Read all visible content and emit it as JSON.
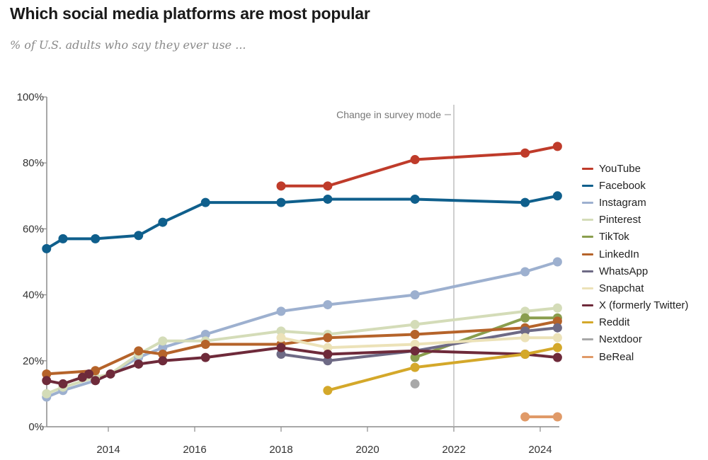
{
  "header": {
    "title": "Which social media platforms are most popular",
    "subtitle": "% of U.S. adults who say they ever use ..."
  },
  "chart_data": {
    "type": "line",
    "title": "Which social media platforms are most popular",
    "subtitle": "% of U.S. adults who say they ever use ...",
    "xlabel": "",
    "ylabel": "",
    "xlim": [
      2012.57,
      2024.6
    ],
    "ylim": [
      0,
      100
    ],
    "x_ticks": [
      2014,
      2016,
      2018,
      2020,
      2022,
      2024
    ],
    "x_tick_labels": [
      "2014",
      "2016",
      "2018",
      "2020",
      "2022",
      "2024"
    ],
    "y_ticks": [
      0,
      20,
      40,
      60,
      80,
      100
    ],
    "y_tick_labels": [
      "0%",
      "20%",
      "40%",
      "60%",
      "80%",
      "100%"
    ],
    "grid": false,
    "legend_position": "right",
    "annotation": {
      "text": "Change in survey mode",
      "x": 2022
    },
    "series": [
      {
        "name": "YouTube",
        "color": "#bf3b2a",
        "points": [
          [
            2018.0,
            73
          ],
          [
            2019.08,
            73
          ],
          [
            2021.1,
            81
          ],
          [
            2023.65,
            83
          ],
          [
            2024.4,
            85
          ]
        ]
      },
      {
        "name": "Facebook",
        "color": "#0f5f8c",
        "points": [
          [
            2012.57,
            54
          ],
          [
            2012.95,
            57
          ],
          [
            2013.7,
            57
          ],
          [
            2014.7,
            58
          ],
          [
            2015.26,
            62
          ],
          [
            2016.25,
            68
          ],
          [
            2018.0,
            68
          ],
          [
            2019.08,
            69
          ],
          [
            2021.1,
            69
          ],
          [
            2023.65,
            68
          ],
          [
            2024.4,
            70
          ]
        ]
      },
      {
        "name": "Instagram",
        "color": "#9db0cf",
        "points": [
          [
            2012.57,
            9
          ],
          [
            2012.95,
            11
          ],
          [
            2013.7,
            14
          ],
          [
            2014.05,
            16
          ],
          [
            2014.7,
            21
          ],
          [
            2015.26,
            24
          ],
          [
            2016.25,
            28
          ],
          [
            2018.0,
            35
          ],
          [
            2019.08,
            37
          ],
          [
            2021.1,
            40
          ],
          [
            2023.65,
            47
          ],
          [
            2024.4,
            50
          ]
        ]
      },
      {
        "name": "Pinterest",
        "color": "#d4dcb8",
        "points": [
          [
            2012.57,
            10
          ],
          [
            2012.95,
            12
          ],
          [
            2013.7,
            15
          ],
          [
            2014.05,
            16
          ],
          [
            2014.7,
            22
          ],
          [
            2015.26,
            26
          ],
          [
            2016.25,
            26
          ],
          [
            2018.0,
            29
          ],
          [
            2019.08,
            28
          ],
          [
            2021.1,
            31
          ],
          [
            2023.65,
            35
          ],
          [
            2024.4,
            36
          ]
        ]
      },
      {
        "name": "TikTok",
        "color": "#8a9e4e",
        "points": [
          [
            2021.1,
            21
          ],
          [
            2023.65,
            33
          ],
          [
            2024.4,
            33
          ]
        ]
      },
      {
        "name": "LinkedIn",
        "color": "#b5632a",
        "points": [
          [
            2012.57,
            16
          ],
          [
            2013.7,
            17
          ],
          [
            2014.7,
            23
          ],
          [
            2015.26,
            22
          ],
          [
            2016.25,
            25
          ],
          [
            2018.0,
            25
          ],
          [
            2019.08,
            27
          ],
          [
            2021.1,
            28
          ],
          [
            2023.65,
            30
          ],
          [
            2024.4,
            32
          ]
        ]
      },
      {
        "name": "WhatsApp",
        "color": "#6e6a85",
        "points": [
          [
            2018.0,
            22
          ],
          [
            2019.08,
            20
          ],
          [
            2021.1,
            23
          ],
          [
            2023.65,
            29
          ],
          [
            2024.4,
            30
          ]
        ]
      },
      {
        "name": "Snapchat",
        "color": "#ece2b8",
        "points": [
          [
            2018.0,
            27
          ],
          [
            2019.08,
            24
          ],
          [
            2021.1,
            25
          ],
          [
            2023.65,
            27
          ],
          [
            2024.4,
            27
          ]
        ]
      },
      {
        "name": "X (formerly Twitter)",
        "color": "#6e2a3a",
        "points": [
          [
            2012.57,
            14
          ],
          [
            2012.95,
            13
          ],
          [
            2013.4,
            15
          ],
          [
            2013.55,
            16
          ],
          [
            2013.7,
            14
          ],
          [
            2014.05,
            16
          ],
          [
            2014.7,
            19
          ],
          [
            2015.26,
            20
          ],
          [
            2016.25,
            21
          ],
          [
            2018.0,
            24
          ],
          [
            2019.08,
            22
          ],
          [
            2021.1,
            23
          ],
          [
            2023.65,
            22
          ],
          [
            2024.4,
            21
          ]
        ]
      },
      {
        "name": "Reddit",
        "color": "#d4a82a",
        "points": [
          [
            2019.08,
            11
          ],
          [
            2021.1,
            18
          ],
          [
            2023.65,
            22
          ],
          [
            2024.4,
            24
          ]
        ]
      },
      {
        "name": "Nextdoor",
        "color": "#a8a8a8",
        "points": [
          [
            2021.1,
            13
          ]
        ]
      },
      {
        "name": "BeReal",
        "color": "#e09a68",
        "points": [
          [
            2023.65,
            3
          ],
          [
            2024.4,
            3
          ]
        ]
      }
    ]
  }
}
